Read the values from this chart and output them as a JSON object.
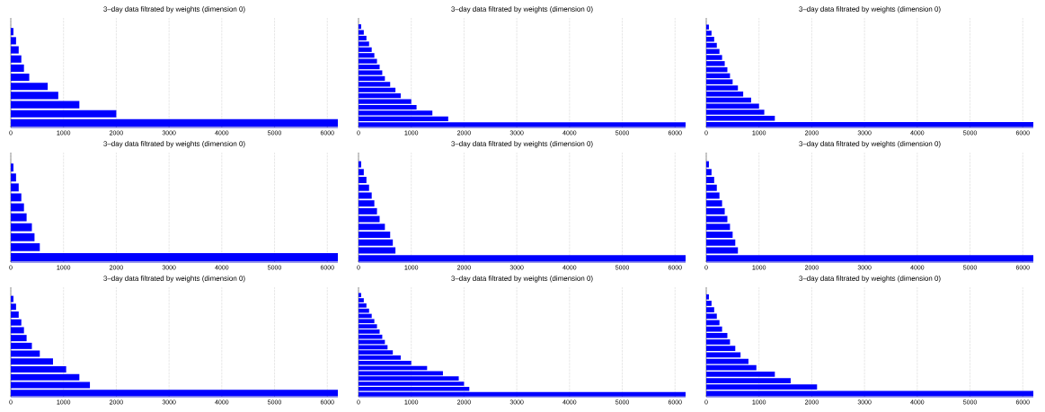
{
  "chart_data": [
    {
      "type": "bar",
      "orientation": "horizontal",
      "title": "3–day data filtrated by weights (dimension 0)",
      "categories": [
        null,
        null,
        null,
        null,
        null,
        null,
        null,
        null,
        null,
        null,
        null,
        null
      ],
      "values": [
        0,
        50,
        100,
        150,
        200,
        250,
        350,
        700,
        900,
        1300,
        2000,
        6200
      ],
      "color": "#0000ff",
      "xlim": [
        0,
        6200
      ],
      "xticks": [
        0,
        1000,
        2000,
        3000,
        4000,
        5000,
        6000
      ],
      "grid": "x",
      "tick_labels": "x"
    },
    {
      "type": "bar",
      "orientation": "horizontal",
      "title": "3–day data filtrated by weights (dimension 0)",
      "categories": [
        null,
        null,
        null,
        null,
        null,
        null,
        null,
        null,
        null,
        null,
        null,
        null,
        null,
        null,
        null,
        null,
        null,
        null,
        null
      ],
      "values": [
        0,
        50,
        100,
        150,
        200,
        250,
        300,
        350,
        400,
        450,
        500,
        600,
        700,
        800,
        1000,
        1100,
        1400,
        1700,
        6200
      ],
      "color": "#0000ff",
      "xlim": [
        0,
        6200
      ],
      "xticks": [
        0,
        1000,
        2000,
        3000,
        4000,
        5000,
        6000
      ],
      "grid": "x",
      "tick_labels": "x"
    },
    {
      "type": "bar",
      "orientation": "horizontal",
      "title": "3–day data filtrated by weights (dimension 0)",
      "categories": [
        null,
        null,
        null,
        null,
        null,
        null,
        null,
        null,
        null,
        null,
        null,
        null,
        null,
        null,
        null,
        null,
        null,
        null
      ],
      "values": [
        0,
        50,
        100,
        150,
        200,
        250,
        300,
        350,
        400,
        450,
        500,
        600,
        700,
        850,
        1000,
        1100,
        1300,
        6200
      ],
      "color": "#0000ff",
      "xlim": [
        0,
        6200
      ],
      "xticks": [
        0,
        1000,
        2000,
        3000,
        4000,
        5000,
        6000
      ],
      "grid": "x",
      "tick_labels": "x"
    },
    {
      "type": "bar",
      "orientation": "horizontal",
      "title": "3–day data filtrated by weights (dimension 0)",
      "categories": [
        null,
        null,
        null,
        null,
        null,
        null,
        null,
        null,
        null,
        null,
        null
      ],
      "values": [
        0,
        50,
        100,
        150,
        200,
        250,
        300,
        400,
        450,
        550,
        6200
      ],
      "color": "#0000ff",
      "xlim": [
        0,
        6200
      ],
      "xticks": [
        0,
        1000,
        2000,
        3000,
        4000,
        5000,
        6000
      ],
      "grid": "x",
      "tick_labels": "x"
    },
    {
      "type": "bar",
      "orientation": "horizontal",
      "title": "3–day data filtrated by weights (dimension 0)",
      "categories": [
        null,
        null,
        null,
        null,
        null,
        null,
        null,
        null,
        null,
        null,
        null,
        null,
        null,
        null
      ],
      "values": [
        0,
        50,
        100,
        150,
        200,
        250,
        300,
        350,
        400,
        500,
        600,
        650,
        700,
        6200
      ],
      "color": "#0000ff",
      "xlim": [
        0,
        6200
      ],
      "xticks": [
        0,
        1000,
        2000,
        3000,
        4000,
        5000,
        6000
      ],
      "grid": "x",
      "tick_labels": "x"
    },
    {
      "type": "bar",
      "orientation": "horizontal",
      "title": "3–day data filtrated by weights (dimension 0)",
      "categories": [
        null,
        null,
        null,
        null,
        null,
        null,
        null,
        null,
        null,
        null,
        null,
        null,
        null,
        null
      ],
      "values": [
        0,
        50,
        100,
        150,
        200,
        250,
        300,
        350,
        400,
        450,
        500,
        550,
        600,
        6200
      ],
      "color": "#0000ff",
      "xlim": [
        0,
        6200
      ],
      "xticks": [
        0,
        1000,
        2000,
        3000,
        4000,
        5000,
        6000
      ],
      "grid": "x",
      "tick_labels": "x"
    },
    {
      "type": "bar",
      "orientation": "horizontal",
      "title": "3–day data filtrated by weights (dimension 0)",
      "categories": [
        null,
        null,
        null,
        null,
        null,
        null,
        null,
        null,
        null,
        null,
        null,
        null,
        null,
        null
      ],
      "values": [
        0,
        50,
        100,
        150,
        200,
        250,
        300,
        400,
        550,
        800,
        1050,
        1300,
        1500,
        6200
      ],
      "color": "#0000ff",
      "xlim": [
        0,
        6200
      ],
      "xticks": [
        0,
        1000,
        2000,
        3000,
        4000,
        5000,
        6000
      ],
      "grid": "x",
      "tick_labels": "x"
    },
    {
      "type": "bar",
      "orientation": "horizontal",
      "title": "3–day data filtrated by weights (dimension 0)",
      "categories": [
        null,
        null,
        null,
        null,
        null,
        null,
        null,
        null,
        null,
        null,
        null,
        null,
        null,
        null,
        null,
        null,
        null,
        null,
        null,
        null,
        null
      ],
      "values": [
        0,
        50,
        100,
        150,
        200,
        250,
        300,
        350,
        400,
        450,
        500,
        550,
        650,
        800,
        1000,
        1300,
        1600,
        1900,
        2000,
        2100,
        6200
      ],
      "color": "#0000ff",
      "xlim": [
        0,
        6200
      ],
      "xticks": [
        0,
        1000,
        2000,
        3000,
        4000,
        5000,
        6000
      ],
      "grid": "x",
      "tick_labels": "x"
    },
    {
      "type": "bar",
      "orientation": "horizontal",
      "title": "3–day data filtrated by weights (dimension 0)",
      "categories": [
        null,
        null,
        null,
        null,
        null,
        null,
        null,
        null,
        null,
        null,
        null,
        null,
        null,
        null,
        null,
        null,
        null
      ],
      "values": [
        0,
        50,
        100,
        150,
        200,
        250,
        300,
        400,
        450,
        550,
        650,
        800,
        950,
        1300,
        1600,
        2100,
        6200
      ],
      "color": "#0000ff",
      "xlim": [
        0,
        6200
      ],
      "xticks": [
        0,
        1000,
        2000,
        3000,
        4000,
        5000,
        6000
      ],
      "grid": "x",
      "tick_labels": "x"
    }
  ]
}
